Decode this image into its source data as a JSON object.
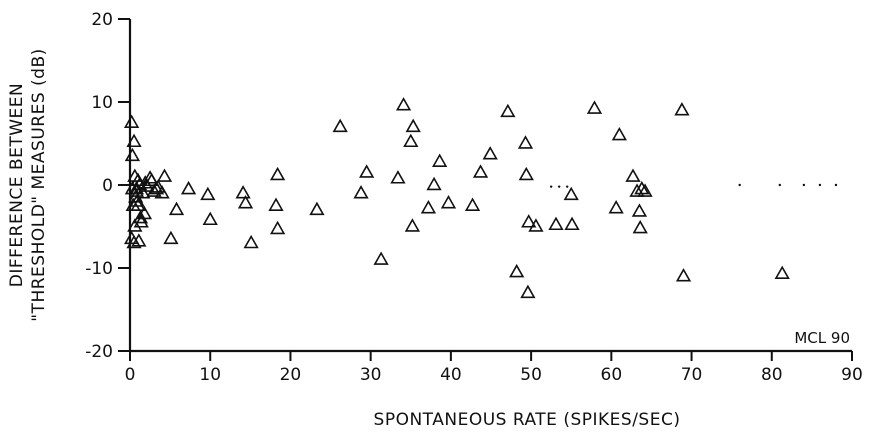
{
  "chart_data": {
    "type": "scatter",
    "title": "",
    "xlabel": "SPONTANEOUS RATE (SPIKES/SEC)",
    "ylabel_line1": "DIFFERENCE BETWEEN",
    "ylabel_line2": "\"THRESHOLD\" MEASURES (dB)",
    "annotation": "MCL 90",
    "xlim": [
      0,
      90
    ],
    "ylim": [
      -20,
      20
    ],
    "x_ticks": [
      "0",
      "10",
      "20",
      "30",
      "40",
      "50",
      "60",
      "70",
      "80",
      "90"
    ],
    "y_ticks": [
      "20",
      "10",
      "0",
      "-10",
      "-20"
    ],
    "grid": false,
    "legend": "none",
    "series": [
      {
        "marker": "triangle",
        "x": [
          0.2,
          0.3,
          0.5,
          0.6,
          0.8,
          0.9,
          1.0,
          1.2,
          0.4,
          0.7,
          0.5,
          1.1,
          1.6,
          0.3,
          0.8,
          1.0,
          1.3,
          1.8,
          2.1,
          2.5,
          3.0,
          3.5,
          4.3,
          4.0,
          0.2,
          0.6,
          1.4,
          1.9,
          2.7,
          3.3,
          5.1,
          5.8,
          7.3,
          9.7,
          10.0,
          14.1,
          14.4,
          15.1,
          18.2,
          18.4,
          18.4,
          23.3,
          26.2,
          28.8,
          29.5,
          31.3,
          33.4,
          34.1,
          35.0,
          35.2,
          35.3,
          37.2,
          37.9,
          38.6,
          39.7,
          42.7,
          43.7,
          44.9,
          47.1,
          48.2,
          49.3,
          49.4,
          49.6,
          49.7,
          50.6,
          53.1,
          55.0,
          55.1,
          57.9,
          60.6,
          61.0,
          62.7,
          63.2,
          63.5,
          63.6,
          63.8,
          64.2,
          68.8,
          69.0,
          81.3
        ],
        "y": [
          7.5,
          3.5,
          5.2,
          1.0,
          -0.5,
          -2.0,
          0.5,
          0.0,
          -2.5,
          -1.5,
          -7.0,
          -6.8,
          -1.0,
          -0.5,
          -0.8,
          -2.5,
          -4.0,
          -3.5,
          -0.2,
          0.8,
          -0.8,
          -0.3,
          1.0,
          -1.0,
          -6.5,
          -5.0,
          -4.5,
          0.2,
          0.5,
          -0.5,
          -6.5,
          -3.0,
          -0.5,
          -1.2,
          -4.2,
          -1.0,
          -2.2,
          -7.0,
          -2.5,
          -5.3,
          1.2,
          -3.0,
          7.0,
          -1.0,
          1.5,
          -9.0,
          0.8,
          9.6,
          5.2,
          -5.0,
          7.0,
          -2.8,
          0.0,
          2.8,
          -2.2,
          -2.5,
          1.5,
          3.7,
          8.8,
          -10.5,
          5.0,
          1.2,
          -13.0,
          -4.5,
          -5.0,
          -4.8,
          -1.2,
          -4.8,
          9.2,
          -2.8,
          6.0,
          1.0,
          -0.8,
          -3.2,
          -5.2,
          -0.5,
          -0.8,
          9.0,
          -11.0,
          -10.7
        ]
      },
      {
        "marker": "dot",
        "x": [
          52.5,
          53.5,
          54.5,
          76.0,
          81.0,
          84.0,
          86.0,
          88.0
        ],
        "y": [
          -0.2,
          -0.2,
          -0.2,
          0,
          0,
          0,
          0,
          0
        ]
      }
    ]
  }
}
